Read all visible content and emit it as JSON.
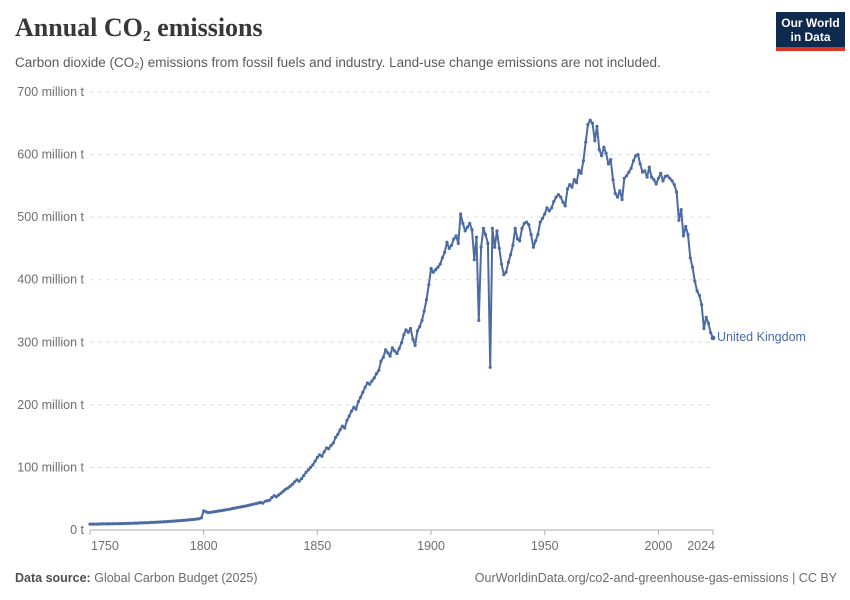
{
  "header": {
    "title": "Annual CO₂ emissions",
    "subtitle": "Carbon dioxide (CO₂) emissions from fossil fuels and industry. Land-use change emissions are not included.",
    "logo": {
      "line1": "Our World",
      "line2": "in Data"
    }
  },
  "footer": {
    "source_label": "Data source:",
    "source_value": "Global Carbon Budget (2025)",
    "attribution": "OurWorldinData.org/co2-and-greenhouse-gas-emissions | CC BY"
  },
  "colors": {
    "line": "#4c6ba3",
    "entity_label": "#4a6ba8",
    "logo_bg": "#0e2a4e",
    "logo_accent": "#dc3327",
    "gridline": "#d9d9d9",
    "axis": "#adadad",
    "tick_text": "#6e6e6e"
  },
  "chart_data": {
    "type": "line",
    "title": "Annual CO₂ emissions",
    "unit": "million tonnes of CO₂",
    "entity_label": "United Kingdom",
    "grid": true,
    "legend_position": "label-at-line-end",
    "xlim": [
      1750,
      2024
    ],
    "ylim": [
      0,
      700
    ],
    "x_ticks": [
      1750,
      1800,
      1850,
      1900,
      1950,
      2000,
      2024
    ],
    "y_ticks": [
      0,
      100,
      200,
      300,
      400,
      500,
      600,
      700
    ],
    "y_tick_labels": [
      "0 t",
      "100 million t",
      "200 million t",
      "300 million t",
      "400 million t",
      "500 million t",
      "600 million t",
      "700 million t"
    ],
    "series": [
      {
        "name": "United Kingdom",
        "x_start_year": 1750,
        "x_end_year": 2024,
        "x_step": 1,
        "values": [
          9.4,
          9.4,
          9.5,
          9.5,
          9.6,
          9.7,
          9.7,
          9.8,
          9.8,
          9.9,
          10.0,
          10.1,
          10.1,
          10.2,
          10.3,
          10.4,
          10.5,
          10.6,
          10.7,
          10.9,
          11.0,
          11.1,
          11.3,
          11.4,
          11.6,
          11.7,
          11.9,
          12.1,
          12.2,
          12.4,
          12.6,
          12.8,
          13.0,
          13.3,
          13.5,
          13.7,
          14.0,
          14.2,
          14.5,
          14.8,
          15.1,
          15.4,
          15.7,
          16.0,
          16.4,
          16.7,
          17.1,
          17.5,
          18.0,
          19.5,
          30.7,
          29.3,
          27.8,
          28.3,
          28.8,
          29.4,
          30.0,
          30.6,
          31.2,
          31.8,
          32.5,
          33.1,
          33.8,
          34.5,
          35.2,
          35.9,
          36.6,
          37.4,
          38.1,
          38.9,
          39.7,
          40.5,
          41.4,
          42.2,
          43.1,
          44.0,
          43.0,
          45.8,
          46.8,
          47.7,
          52,
          55,
          53,
          56,
          59,
          62,
          65,
          67,
          70,
          73,
          77,
          80,
          78,
          82,
          87,
          92,
          96,
          100,
          104,
          110,
          116,
          120,
          118,
          125,
          131,
          130,
          135,
          139,
          148,
          153,
          160,
          166,
          163,
          175,
          182,
          190,
          196,
          193,
          205,
          212,
          220,
          228,
          235,
          233,
          238,
          243,
          250,
          255,
          270,
          276,
          288,
          283,
          278,
          291,
          286,
          282,
          290,
          299,
          312,
          320,
          316,
          322,
          305,
          295,
          318,
          325,
          335,
          350,
          368,
          392,
          418,
          412,
          416,
          420,
          425,
          435,
          444,
          460,
          450,
          455,
          465,
          470,
          458,
          505,
          490,
          478,
          484,
          490,
          480,
          432,
          468,
          335,
          452,
          482,
          472,
          458,
          260,
          482,
          452,
          478,
          450,
          425,
          408,
          412,
          428,
          440,
          455,
          482,
          465,
          462,
          482,
          490,
          492,
          488,
          472,
          452,
          462,
          472,
          492,
          498,
          505,
          515,
          510,
          515,
          525,
          532,
          536,
          532,
          524,
          518,
          545,
          552,
          548,
          560,
          555,
          575,
          570,
          590,
          620,
          648,
          655,
          650,
          622,
          645,
          608,
          598,
          612,
          602,
          585,
          592,
          560,
          538,
          532,
          542,
          528,
          562,
          566,
          572,
          578,
          590,
          598,
          600,
          585,
          572,
          574,
          564,
          580,
          564,
          560,
          553,
          562,
          570,
          558,
          565,
          566,
          562,
          558,
          552,
          540,
          495,
          512,
          470,
          485,
          472,
          435,
          420,
          398,
          382,
          375,
          360,
          322,
          340,
          330,
          315,
          307
        ]
      }
    ]
  }
}
